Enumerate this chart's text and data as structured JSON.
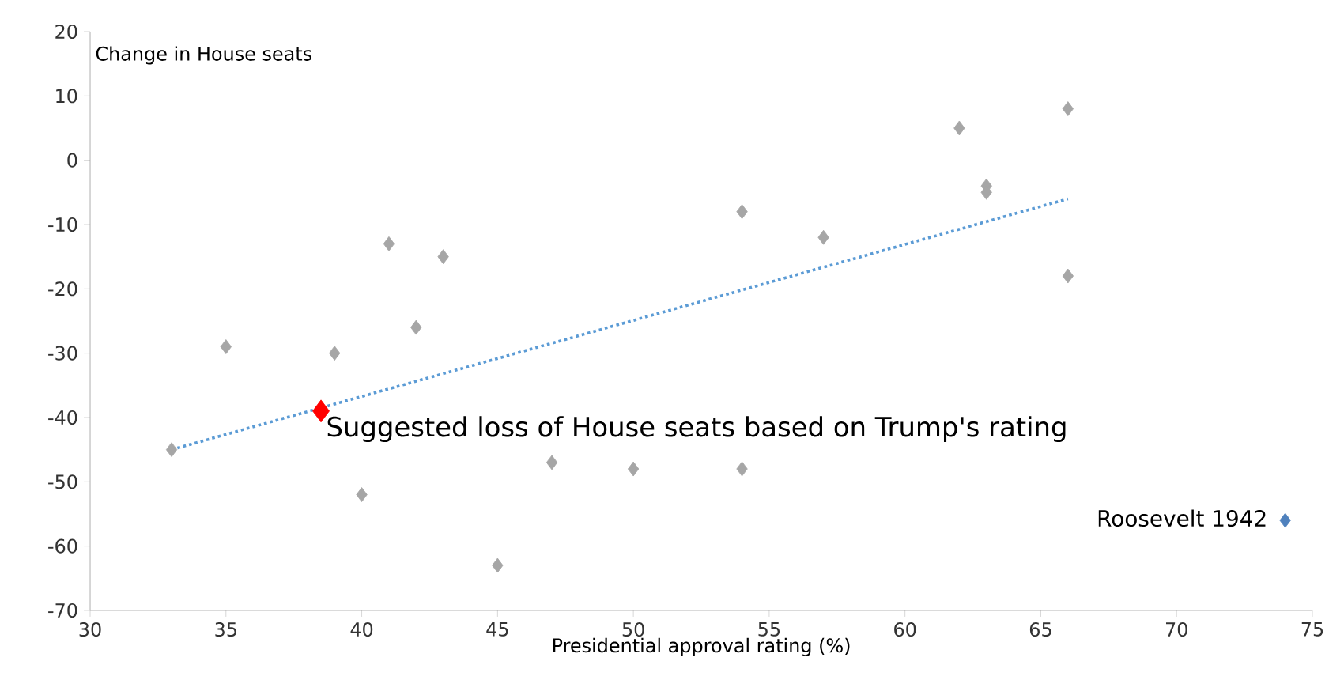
{
  "chart_data": {
    "type": "scatter",
    "xlabel": "Presidential approval rating (%)",
    "ylabel": "Change in House seats",
    "xlim": [
      30,
      75
    ],
    "xticks": [
      30,
      35,
      40,
      45,
      50,
      55,
      60,
      65,
      70,
      75
    ],
    "ylim": [
      -70,
      20
    ],
    "yticks": [
      -70,
      -60,
      -50,
      -40,
      -30,
      -20,
      -10,
      0,
      10,
      20
    ],
    "marker": "diamond",
    "grid": false,
    "series": [
      {
        "color": "#a6a6a6",
        "x": [
          33,
          35,
          39,
          40,
          41,
          42,
          43,
          45,
          47,
          50,
          54,
          54,
          57,
          62,
          63,
          63,
          66,
          66
        ],
        "values": [
          -45,
          -29,
          -30,
          -52,
          -13,
          -26,
          -15,
          -63,
          -47,
          -48,
          -8,
          -48,
          -12,
          5,
          -4,
          -5,
          8,
          -18
        ]
      },
      {
        "name": "Suggested loss of House seats based on Trump's rating",
        "color": "#ff0000",
        "x": [
          38.5
        ],
        "values": [
          -39
        ]
      },
      {
        "name": "Roosevelt 1942",
        "color": "#4f81bd",
        "x": [
          74
        ],
        "values": [
          -56
        ]
      },
      {
        "type": "line",
        "marker": "none",
        "line_style": "dotted",
        "color": "#5b9bd5",
        "x": [
          33,
          66
        ],
        "values": [
          -45,
          -6
        ]
      }
    ]
  }
}
